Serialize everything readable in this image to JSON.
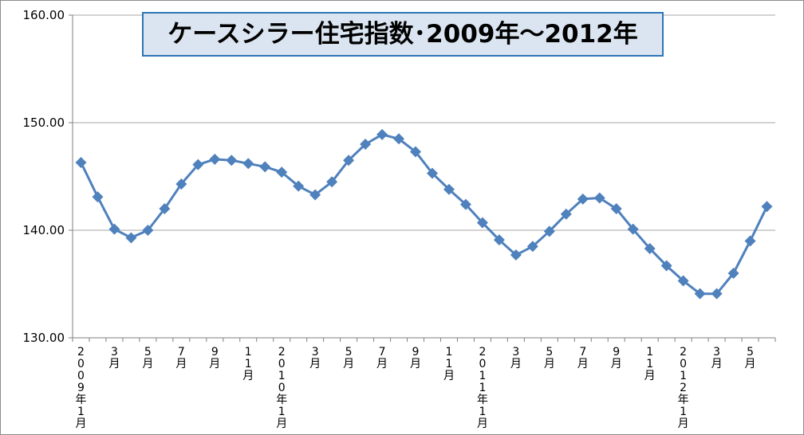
{
  "chart_data": {
    "type": "line",
    "title": "ケースシラー住宅指数･2009年～2012年",
    "xlabel": "",
    "ylabel": "",
    "ylim": [
      130,
      160
    ],
    "yticks": [
      "130.00",
      "140.00",
      "150.00",
      "160.00"
    ],
    "ytick_values": [
      130,
      140,
      150,
      160
    ],
    "grid": true,
    "legend": "none",
    "colors": {
      "series": "#4f81bd",
      "grid": "#a6a6a6",
      "title_bg": "#dbe5f1",
      "title_border": "#2e75b6"
    },
    "x_labels": [
      "2009年1月",
      "",
      "3月",
      "",
      "5月",
      "",
      "7月",
      "",
      "9月",
      "",
      "11月",
      "",
      "2010年1月",
      "",
      "3月",
      "",
      "5月",
      "",
      "7月",
      "",
      "9月",
      "",
      "11月",
      "",
      "2011年1月",
      "",
      "3月",
      "",
      "5月",
      "",
      "7月",
      "",
      "9月",
      "",
      "11月",
      "",
      "2012年1月",
      "",
      "3月",
      "",
      "5月",
      ""
    ],
    "series": [
      {
        "values": [
          146.3,
          143.1,
          140.1,
          139.3,
          140.0,
          142.0,
          144.3,
          146.1,
          146.6,
          146.5,
          146.2,
          145.9,
          145.4,
          144.1,
          143.3,
          144.5,
          146.5,
          148.0,
          148.9,
          148.5,
          147.3,
          145.3,
          143.8,
          142.4,
          140.7,
          139.1,
          137.7,
          138.5,
          139.9,
          141.5,
          142.9,
          143.0,
          142.0,
          140.1,
          138.3,
          136.7,
          135.3,
          134.1,
          134.1,
          136.0,
          139.0,
          142.2
        ]
      }
    ]
  }
}
